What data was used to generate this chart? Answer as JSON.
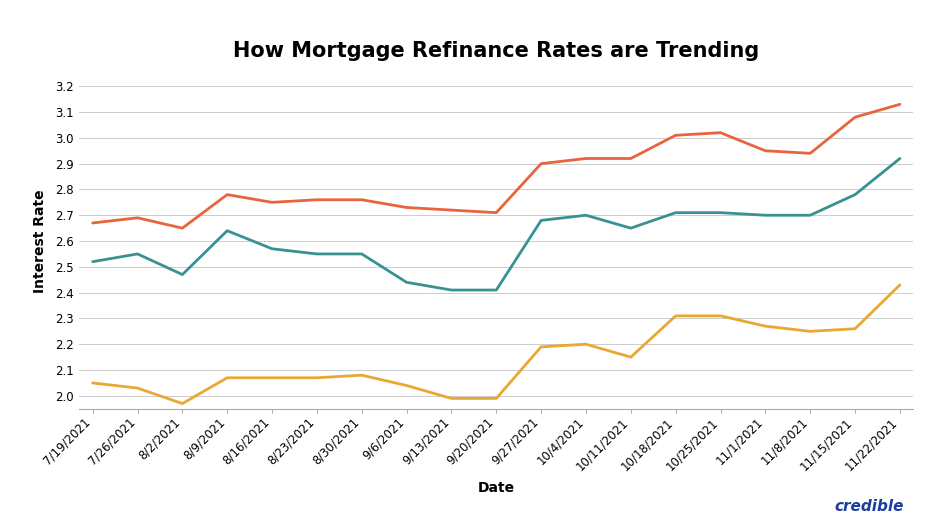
{
  "title": "How Mortgage Refinance Rates are Trending",
  "xlabel": "Date",
  "ylabel": "Interest Rate",
  "background_color": "#ffffff",
  "grid_color": "#cccccc",
  "ylim": [
    1.95,
    3.25
  ],
  "yticks": [
    2.0,
    2.1,
    2.2,
    2.3,
    2.4,
    2.5,
    2.6,
    2.7,
    2.8,
    2.9,
    3.0,
    3.1,
    3.2
  ],
  "dates": [
    "7/19/2021",
    "7/26/2021",
    "8/2/2021",
    "8/9/2021",
    "8/16/2021",
    "8/23/2021",
    "8/30/2021",
    "9/6/2021",
    "9/13/2021",
    "9/20/2021",
    "9/27/2021",
    "10/4/2021",
    "10/11/2021",
    "10/18/2021",
    "10/25/2021",
    "11/1/2021",
    "11/8/2021",
    "11/15/2021",
    "11/22/2021"
  ],
  "series_30yr": [
    2.67,
    2.69,
    2.65,
    2.78,
    2.75,
    2.76,
    2.76,
    2.73,
    2.72,
    2.71,
    2.9,
    2.92,
    2.92,
    3.01,
    3.02,
    2.95,
    2.94,
    3.08,
    3.13
  ],
  "series_20yr": [
    2.52,
    2.55,
    2.47,
    2.64,
    2.57,
    2.55,
    2.55,
    2.44,
    2.41,
    2.41,
    2.68,
    2.7,
    2.65,
    2.71,
    2.71,
    2.7,
    2.7,
    2.78,
    2.92
  ],
  "series_15yr": [
    2.05,
    2.03,
    1.97,
    2.07,
    2.07,
    2.07,
    2.08,
    2.04,
    1.99,
    1.99,
    2.19,
    2.2,
    2.15,
    2.31,
    2.31,
    2.27,
    2.25,
    2.26,
    2.43
  ],
  "color_30yr": "#e8643c",
  "color_20yr": "#3a9191",
  "color_15yr": "#e8a832",
  "credible_color": "#1a3fa0",
  "title_fontsize": 15,
  "axis_label_fontsize": 10,
  "tick_fontsize": 8.5,
  "legend_fontsize": 10
}
